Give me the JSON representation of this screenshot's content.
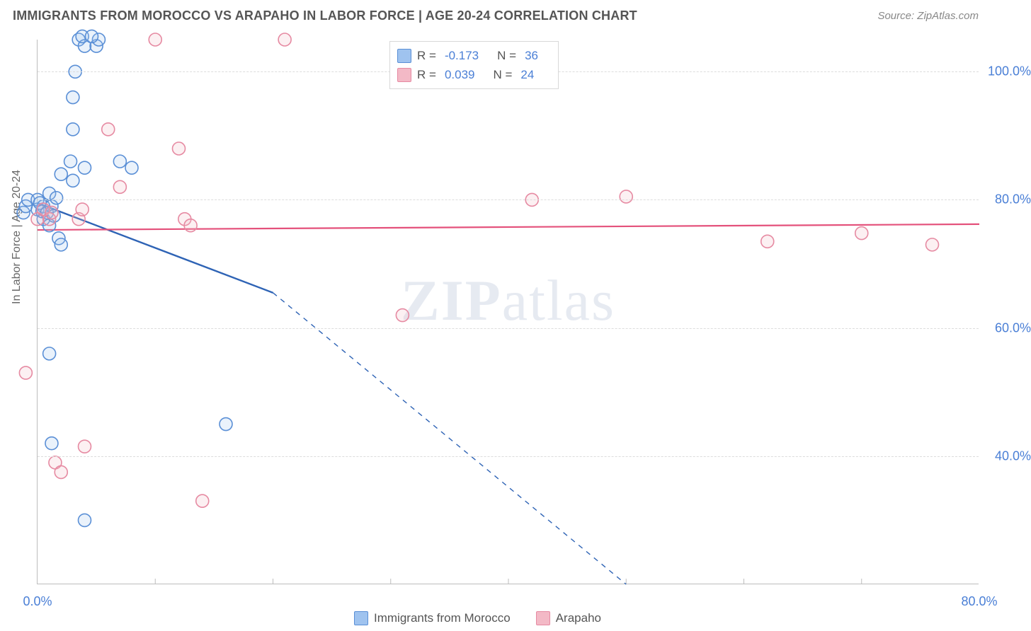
{
  "title": "IMMIGRANTS FROM MOROCCO VS ARAPAHO IN LABOR FORCE | AGE 20-24 CORRELATION CHART",
  "source_label": "Source: ZipAtlas.com",
  "y_axis_label": "In Labor Force | Age 20-24",
  "watermark_bold": "ZIP",
  "watermark_light": "atlas",
  "chart": {
    "type": "scatter",
    "xlim": [
      0,
      80
    ],
    "ylim": [
      20,
      105
    ],
    "x_ticks": [
      0,
      80
    ],
    "x_tick_labels": [
      "0.0%",
      "80.0%"
    ],
    "x_minor_ticks": [
      10,
      20,
      30,
      40,
      50,
      60,
      70
    ],
    "y_ticks": [
      40,
      60,
      80,
      100
    ],
    "y_tick_labels": [
      "40.0%",
      "60.0%",
      "80.0%",
      "100.0%"
    ],
    "background_color": "#ffffff",
    "grid_color": "#dcdcdc",
    "axis_color": "#bdbdbd",
    "tick_label_color": "#4a7fd6",
    "tick_label_fontsize": 18,
    "marker_radius": 9,
    "marker_fill_opacity": 0.22,
    "marker_stroke_width": 1.6,
    "series": [
      {
        "name": "Immigrants from Morocco",
        "color_fill": "#9fc3ef",
        "color_stroke": "#5a8fd6",
        "R": -0.173,
        "N": 36,
        "trend": {
          "x1": 0,
          "y1": 79.5,
          "x2": 20,
          "y2": 65.5,
          "dash_from_x": 20,
          "dash_to_x": 50,
          "dash_to_y": 20,
          "stroke": "#2e63b5",
          "width": 2.4
        },
        "points": [
          [
            -1.2,
            78
          ],
          [
            -1.0,
            79
          ],
          [
            -0.8,
            80
          ],
          [
            0,
            78.5
          ],
          [
            0,
            80
          ],
          [
            0.5,
            79
          ],
          [
            0.5,
            77
          ],
          [
            0.2,
            79.5
          ],
          [
            0.4,
            78.2
          ],
          [
            0.8,
            78
          ],
          [
            1.0,
            81
          ],
          [
            1.0,
            76
          ],
          [
            1.2,
            79
          ],
          [
            1.4,
            77.5
          ],
          [
            1.6,
            80.3
          ],
          [
            1.8,
            74
          ],
          [
            2,
            73
          ],
          [
            2,
            84
          ],
          [
            3,
            83
          ],
          [
            3.5,
            105
          ],
          [
            4,
            104
          ],
          [
            5,
            104
          ],
          [
            5.2,
            105
          ],
          [
            3,
            96
          ],
          [
            3.2,
            100
          ],
          [
            3,
            91
          ],
          [
            2.8,
            86
          ],
          [
            4,
            85
          ],
          [
            7,
            86
          ],
          [
            8,
            85
          ],
          [
            1,
            56
          ],
          [
            1.2,
            42
          ],
          [
            4,
            30
          ],
          [
            16,
            45
          ],
          [
            3.8,
            105.5
          ],
          [
            4.6,
            105.5
          ]
        ]
      },
      {
        "name": "Arapaho",
        "color_fill": "#f3b9c6",
        "color_stroke": "#e68aa2",
        "R": 0.039,
        "N": 24,
        "trend": {
          "x1": 0,
          "y1": 75.3,
          "x2": 80,
          "y2": 76.2,
          "stroke": "#e4517b",
          "width": 2.2
        },
        "points": [
          [
            -1,
            53
          ],
          [
            0,
            77
          ],
          [
            0.5,
            78.5
          ],
          [
            1,
            77
          ],
          [
            1.2,
            78
          ],
          [
            1.5,
            39
          ],
          [
            2,
            37.5
          ],
          [
            3.5,
            77
          ],
          [
            3.8,
            78.5
          ],
          [
            4,
            41.5
          ],
          [
            6,
            91
          ],
          [
            7,
            82
          ],
          [
            10,
            105
          ],
          [
            12,
            88
          ],
          [
            12.5,
            77
          ],
          [
            13,
            76
          ],
          [
            14,
            33
          ],
          [
            21,
            105
          ],
          [
            31,
            62
          ],
          [
            42,
            80
          ],
          [
            50,
            80.5
          ],
          [
            62,
            73.5
          ],
          [
            70,
            74.8
          ],
          [
            76,
            73
          ]
        ]
      }
    ]
  },
  "legend_top": [
    {
      "swatch_fill": "#9fc3ef",
      "swatch_stroke": "#5a8fd6",
      "r_label": "R =",
      "r_value": "-0.173",
      "n_label": "N =",
      "n_value": "36"
    },
    {
      "swatch_fill": "#f3b9c6",
      "swatch_stroke": "#e68aa2",
      "r_label": "R =",
      "r_value": "0.039",
      "n_label": "N =",
      "n_value": "24"
    }
  ],
  "legend_bottom": [
    {
      "swatch_fill": "#9fc3ef",
      "swatch_stroke": "#5a8fd6",
      "label": "Immigrants from Morocco"
    },
    {
      "swatch_fill": "#f3b9c6",
      "swatch_stroke": "#e68aa2",
      "label": "Arapaho"
    }
  ]
}
